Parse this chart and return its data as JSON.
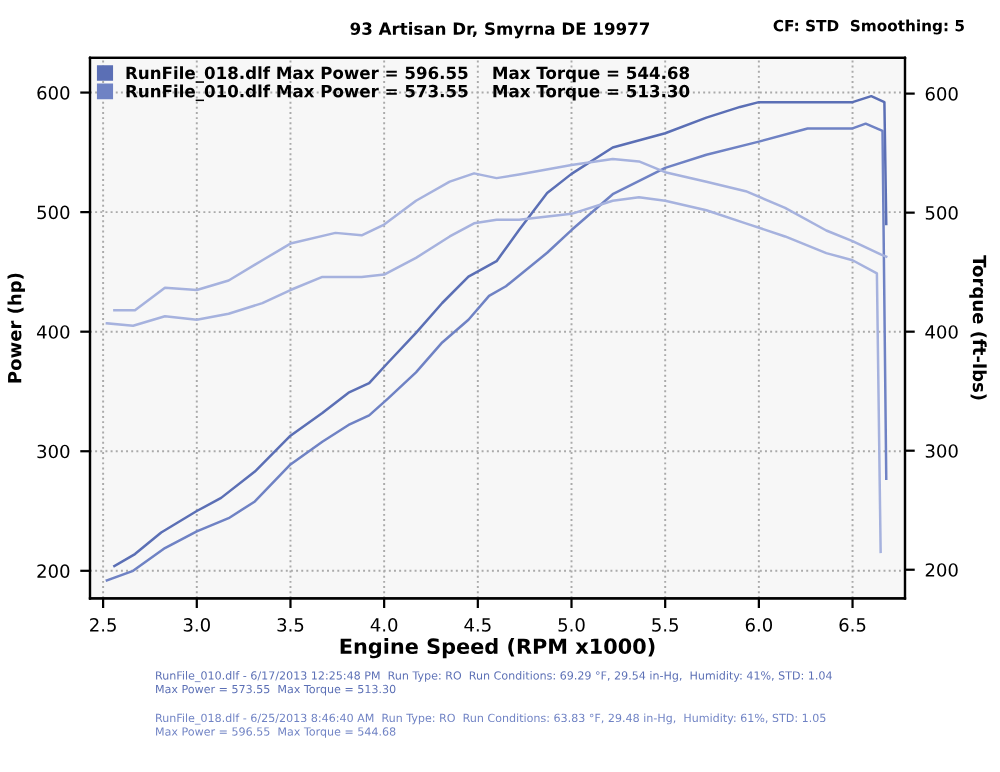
{
  "chart_data": {
    "type": "line",
    "title": "93 Artisan Dr, Smyrna DE 19977",
    "xlabel": "Engine Speed (RPM x1000)",
    "ylabel": "Power (hp)",
    "y2label": "Torque (ft-lbs)",
    "xlim": [
      2.43,
      6.78
    ],
    "ylim": [
      177,
      629
    ],
    "y2lim": [
      176,
      630
    ],
    "xticks": [
      {
        "value": 2.5,
        "label": "2.5"
      },
      {
        "value": 3,
        "label": "3.0"
      },
      {
        "value": 3.5,
        "label": "3.5"
      },
      {
        "value": 4,
        "label": "4.0"
      },
      {
        "value": 4.5,
        "label": "4.5"
      },
      {
        "value": 5,
        "label": "5.0"
      },
      {
        "value": 5.5,
        "label": "5.5"
      },
      {
        "value": 6,
        "label": "6.0"
      },
      {
        "value": 6.5,
        "label": "6.5"
      }
    ],
    "yticks": [
      200,
      300,
      400,
      500,
      600
    ],
    "y2ticks": [
      200,
      300,
      400,
      500,
      600
    ],
    "grid": true,
    "legend": "top left",
    "line_style": "solid",
    "series": [
      {
        "name": "RunFile_018.dlf Max Power = 596.55    Max Torque = 544.68",
        "color": "#5b6fb5",
        "x": [
          2.56,
          2.67,
          2.81,
          3.0,
          3.13,
          3.31,
          3.5,
          3.67,
          3.81,
          3.92,
          4.02,
          4.17,
          4.31,
          4.45,
          4.6,
          4.72,
          4.87,
          5.0,
          5.22,
          5.5,
          5.72,
          5.9,
          6.0,
          6.22,
          6.5,
          6.6,
          6.67,
          6.68
        ],
        "values": [
          204,
          214,
          232,
          250,
          261,
          283,
          313,
          332,
          349,
          357,
          374,
          399,
          424,
          446,
          459,
          485,
          516,
          532,
          554,
          566,
          579,
          588,
          592,
          592,
          592,
          597,
          592,
          490
        ]
      },
      {
        "name": "RunFile_010.dlf Max Power = 573.55    Max Torque = 513.30",
        "color": "#6f82c4",
        "x": [
          2.52,
          2.66,
          2.83,
          3.0,
          3.17,
          3.31,
          3.5,
          3.67,
          3.81,
          3.92,
          4.02,
          4.17,
          4.31,
          4.45,
          4.56,
          4.65,
          4.87,
          5.0,
          5.22,
          5.5,
          5.72,
          6.0,
          6.26,
          6.5,
          6.57,
          6.66,
          6.68
        ],
        "values": [
          192,
          200,
          219,
          233,
          244,
          258,
          289,
          308,
          322,
          330,
          344,
          366,
          391,
          410,
          430,
          438,
          466,
          485,
          515,
          537,
          548,
          559,
          570,
          570,
          574,
          568,
          277
        ]
      },
      {
        "color": "#a6b2de",
        "axis": "y2",
        "x": [
          2.56,
          2.67,
          2.83,
          3.0,
          3.17,
          3.35,
          3.5,
          3.74,
          3.88,
          4.0,
          4.17,
          4.35,
          4.48,
          4.6,
          4.72,
          5.0,
          5.22,
          5.36,
          5.5,
          5.72,
          5.93,
          6.14,
          6.36,
          6.5,
          6.65,
          6.68
        ],
        "values": [
          418,
          418,
          437,
          435,
          443,
          460,
          474,
          483,
          481,
          490,
          510,
          526,
          533,
          529,
          532,
          540,
          545,
          543,
          534,
          526,
          518,
          504,
          485,
          476,
          465,
          463
        ]
      },
      {
        "color": "#a6b2de",
        "axis": "y2",
        "x": [
          2.52,
          2.66,
          2.83,
          3.0,
          3.17,
          3.35,
          3.5,
          3.67,
          3.88,
          4.0,
          4.17,
          4.35,
          4.48,
          4.6,
          4.72,
          5.0,
          5.22,
          5.36,
          5.5,
          5.72,
          5.93,
          6.14,
          6.36,
          6.5,
          6.63,
          6.65
        ],
        "values": [
          407,
          405,
          413,
          410,
          415,
          424,
          435,
          446,
          446,
          448,
          462,
          480,
          491,
          494,
          494,
          499,
          510,
          513,
          510,
          502,
          491,
          480,
          466,
          460,
          449,
          215
        ]
      }
    ],
    "annotations": [
      "CF: STD  Smoothing: 5",
      "RunFile_010.dlf - 6/17/2013 12:25:48 PM  Run Type: RO  Run Conditions: 69.29 °F, 29.54 in-Hg,  Humidity: 41%, STD: 1.04\nMax Power = 573.55  Max Torque = 513.30",
      "RunFile_018.dlf - 6/25/2013 8:46:40 AM  Run Type: RO  Run Conditions: 63.83 °F, 29.48 in-Hg,  Humidity: 61%, STD: 1.05\nMax Power = 596.55  Max Torque = 544.68"
    ]
  }
}
